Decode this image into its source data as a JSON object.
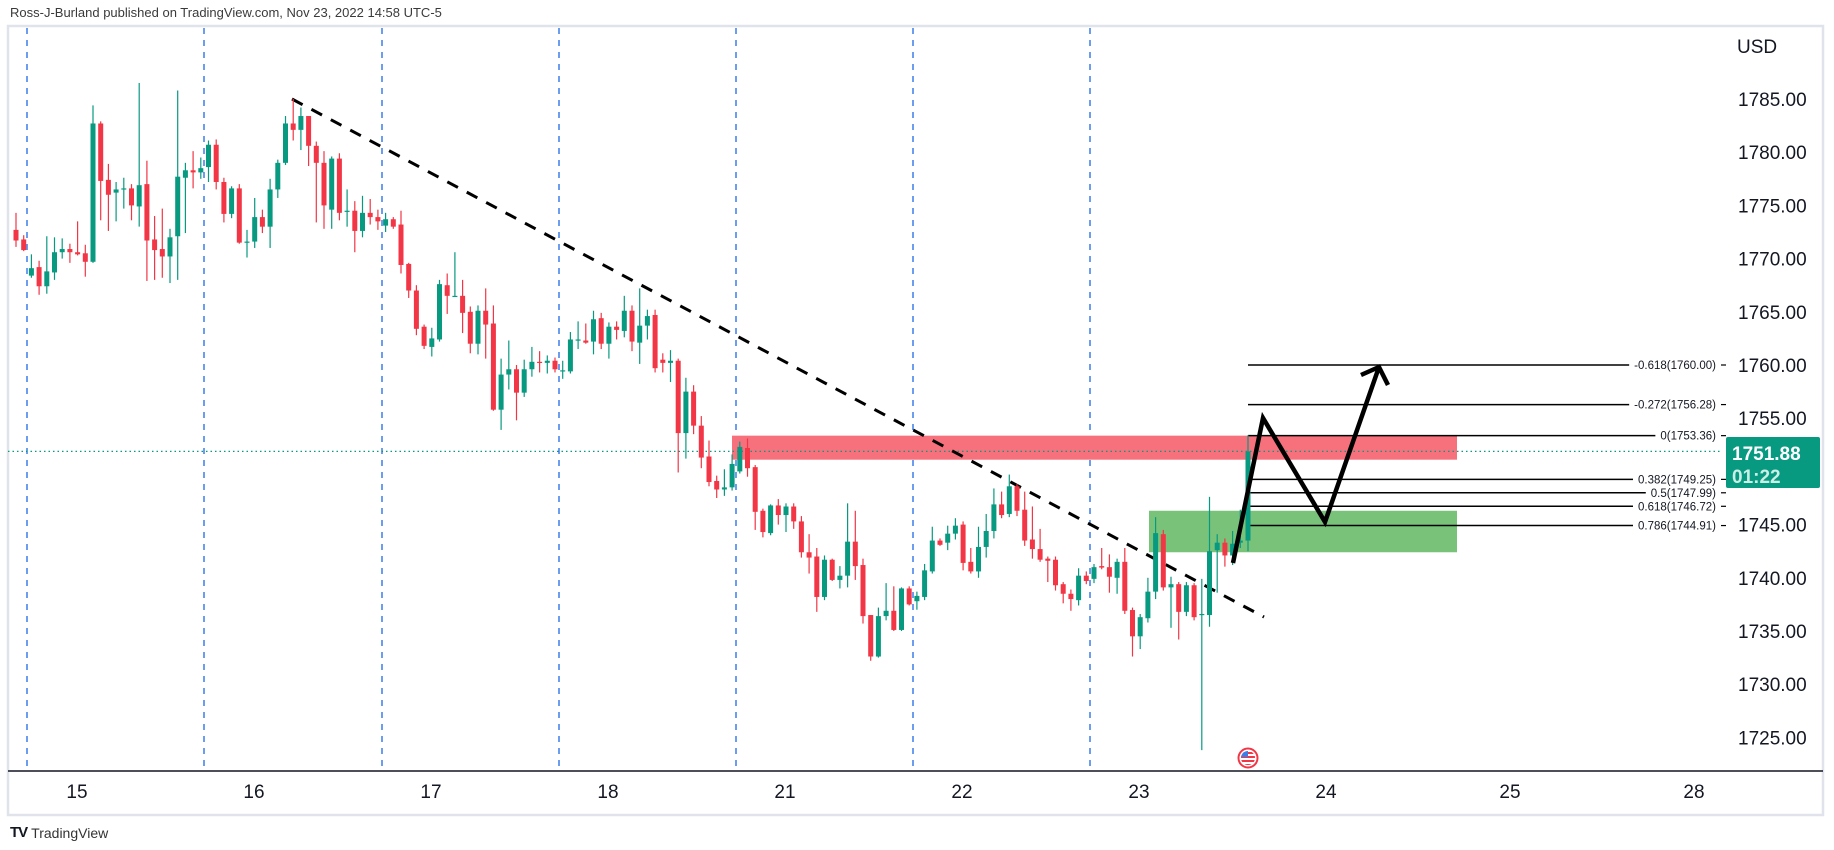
{
  "header": {
    "attribution": "Ross-J-Burland published on TradingView.com, Nov 23, 2022 14:58 UTC-5"
  },
  "footer": {
    "logo_mark": "TV",
    "logo_text": "TradingView"
  },
  "current_price": {
    "value": "1751.88",
    "countdown": "01:22"
  },
  "colors": {
    "up": "#089981",
    "down": "#f23645",
    "resistance_zone": "#f7717d",
    "support_zone": "#78c27a",
    "session_separator": "#3d7de8",
    "trendline": "#000000",
    "projection": "#000000",
    "price_badge": "#089981"
  },
  "icons": {
    "event": "us-flag-economic-event-icon"
  },
  "chart_data": {
    "type": "candlestick",
    "title": "",
    "currency": "USD",
    "ylim": [
      1722,
      1792
    ],
    "grid": false,
    "price_ticks": [
      "1785.00",
      "1780.00",
      "1775.00",
      "1770.00",
      "1765.00",
      "1760.00",
      "1755.00",
      "1745.00",
      "1740.00",
      "1735.00",
      "1730.00",
      "1725.00"
    ],
    "time_ticks": [
      "15",
      "16",
      "17",
      "18",
      "21",
      "22",
      "23",
      "24",
      "25",
      "28"
    ],
    "ohlc": [
      [
        1772.7,
        1774.3,
        1771.1,
        1771.7
      ],
      [
        1771.8,
        1772.2,
        1770.7,
        1770.8
      ],
      [
        1768.4,
        1770.4,
        1768.2,
        1769.1
      ],
      [
        1769.2,
        1769.8,
        1766.6,
        1767.4
      ],
      [
        1767.4,
        1772.1,
        1766.7,
        1768.8
      ],
      [
        1768.7,
        1772.0,
        1768.0,
        1770.6
      ],
      [
        1770.6,
        1771.9,
        1770.0,
        1770.9
      ],
      [
        1770.9,
        1771.4,
        1769.6,
        1770.6
      ],
      [
        1770.6,
        1773.5,
        1770.3,
        1770.4
      ],
      [
        1770.5,
        1771.3,
        1768.3,
        1769.7
      ],
      [
        1769.7,
        1784.4,
        1769.6,
        1782.7
      ],
      [
        1782.7,
        1782.9,
        1773.6,
        1777.3
      ],
      [
        1777.4,
        1778.9,
        1772.6,
        1776.0
      ],
      [
        1776.2,
        1777.2,
        1773.5,
        1776.5
      ],
      [
        1776.5,
        1777.6,
        1774.7,
        1776.6
      ],
      [
        1776.6,
        1777.0,
        1773.6,
        1775.0
      ],
      [
        1774.9,
        1786.5,
        1773.0,
        1776.9
      ],
      [
        1777.0,
        1779.2,
        1767.9,
        1771.7
      ],
      [
        1771.8,
        1774.0,
        1768.0,
        1770.8
      ],
      [
        1770.9,
        1774.7,
        1768.2,
        1770.2
      ],
      [
        1770.2,
        1772.8,
        1767.7,
        1772.0
      ],
      [
        1772.1,
        1785.8,
        1768.0,
        1777.7
      ],
      [
        1777.6,
        1779.0,
        1772.4,
        1778.3
      ],
      [
        1778.3,
        1780.1,
        1776.6,
        1778.1
      ],
      [
        1778.1,
        1779.5,
        1777.5,
        1778.5
      ],
      [
        1778.6,
        1781.1,
        1777.2,
        1780.7
      ],
      [
        1780.7,
        1781.2,
        1776.5,
        1777.2
      ],
      [
        1777.2,
        1777.6,
        1773.4,
        1774.2
      ],
      [
        1774.2,
        1776.8,
        1773.8,
        1776.6
      ],
      [
        1776.6,
        1777.0,
        1771.4,
        1771.5
      ],
      [
        1771.5,
        1772.7,
        1770.1,
        1771.6
      ],
      [
        1771.6,
        1775.7,
        1771.0,
        1773.9
      ],
      [
        1773.9,
        1774.6,
        1772.4,
        1773.0
      ],
      [
        1773.0,
        1777.5,
        1771.0,
        1776.5
      ],
      [
        1776.5,
        1779.3,
        1775.7,
        1779.0
      ],
      [
        1779.0,
        1783.4,
        1778.8,
        1782.7
      ],
      [
        1782.7,
        1785.0,
        1781.1,
        1782.1
      ],
      [
        1782.1,
        1784.2,
        1780.2,
        1783.4
      ],
      [
        1783.4,
        1783.4,
        1778.7,
        1780.6
      ],
      [
        1780.6,
        1781.0,
        1773.4,
        1779.0
      ],
      [
        1779.0,
        1780.1,
        1772.8,
        1775.0
      ],
      [
        1774.6,
        1779.6,
        1772.8,
        1779.4
      ],
      [
        1779.4,
        1779.9,
        1773.6,
        1774.3
      ],
      [
        1774.4,
        1776.5,
        1773.0,
        1774.5
      ],
      [
        1774.5,
        1775.4,
        1770.6,
        1772.6
      ],
      [
        1772.6,
        1775.9,
        1772.0,
        1774.3
      ],
      [
        1774.3,
        1775.6,
        1773.2,
        1773.9
      ],
      [
        1773.9,
        1774.6,
        1772.7,
        1773.5
      ],
      [
        1773.1,
        1774.3,
        1772.5,
        1773.7
      ],
      [
        1773.7,
        1773.9,
        1772.8,
        1773.0
      ],
      [
        1773.2,
        1774.5,
        1768.6,
        1769.4
      ],
      [
        1769.5,
        1769.6,
        1766.3,
        1767.0
      ],
      [
        1767.0,
        1767.5,
        1762.8,
        1763.4
      ],
      [
        1763.6,
        1763.8,
        1761.5,
        1761.8
      ],
      [
        1761.7,
        1763.5,
        1760.8,
        1762.5
      ],
      [
        1762.4,
        1768.0,
        1762.2,
        1767.6
      ],
      [
        1767.5,
        1768.6,
        1764.8,
        1766.5
      ],
      [
        1766.5,
        1770.6,
        1766.4,
        1766.5
      ],
      [
        1766.5,
        1768.0,
        1763.0,
        1764.9
      ],
      [
        1765.0,
        1765.5,
        1761.1,
        1762.0
      ],
      [
        1762.0,
        1765.6,
        1761.0,
        1765.1
      ],
      [
        1765.1,
        1767.2,
        1760.6,
        1763.8
      ],
      [
        1763.9,
        1765.6,
        1755.7,
        1755.8
      ],
      [
        1755.8,
        1760.6,
        1753.9,
        1759.1
      ],
      [
        1759.1,
        1762.3,
        1757.7,
        1759.6
      ],
      [
        1759.6,
        1760.0,
        1754.8,
        1757.4
      ],
      [
        1757.4,
        1760.5,
        1757.0,
        1759.6
      ],
      [
        1759.6,
        1761.7,
        1758.9,
        1760.3
      ],
      [
        1760.3,
        1761.3,
        1759.3,
        1760.2
      ],
      [
        1760.2,
        1760.9,
        1759.2,
        1760.4
      ],
      [
        1760.4,
        1760.7,
        1759.3,
        1759.6
      ],
      [
        1759.4,
        1760.4,
        1758.7,
        1759.5
      ],
      [
        1759.4,
        1763.1,
        1759.2,
        1762.4
      ],
      [
        1762.4,
        1764.1,
        1761.5,
        1762.4
      ],
      [
        1762.3,
        1763.9,
        1762.0,
        1762.1
      ],
      [
        1762.2,
        1765.1,
        1761.0,
        1764.3
      ],
      [
        1764.4,
        1764.9,
        1761.5,
        1762.0
      ],
      [
        1762.0,
        1764.0,
        1760.6,
        1763.6
      ],
      [
        1763.6,
        1764.1,
        1762.4,
        1763.3
      ],
      [
        1763.2,
        1766.5,
        1762.6,
        1765.1
      ],
      [
        1765.1,
        1765.6,
        1761.3,
        1762.2
      ],
      [
        1762.1,
        1767.2,
        1760.1,
        1763.7
      ],
      [
        1763.7,
        1765.2,
        1762.4,
        1764.6
      ],
      [
        1764.7,
        1765.2,
        1759.3,
        1759.7
      ],
      [
        1760.5,
        1761.1,
        1759.3,
        1760.2
      ],
      [
        1760.2,
        1761.4,
        1758.4,
        1760.4
      ],
      [
        1760.4,
        1760.6,
        1749.9,
        1753.6
      ],
      [
        1753.6,
        1758.8,
        1751.2,
        1757.5
      ],
      [
        1757.5,
        1758.1,
        1753.5,
        1754.3
      ],
      [
        1754.3,
        1755.2,
        1750.3,
        1751.3
      ],
      [
        1751.4,
        1752.9,
        1748.6,
        1749.0
      ],
      [
        1749.1,
        1749.6,
        1747.5,
        1748.3
      ],
      [
        1748.3,
        1750.2,
        1747.7,
        1748.5
      ],
      [
        1748.5,
        1751.6,
        1748.2,
        1750.7
      ],
      [
        1750.0,
        1752.8,
        1749.8,
        1752.3
      ],
      [
        1752.2,
        1753.1,
        1749.5,
        1750.3
      ],
      [
        1750.4,
        1750.6,
        1744.5,
        1746.2
      ],
      [
        1746.3,
        1746.5,
        1743.8,
        1744.3
      ],
      [
        1744.2,
        1746.9,
        1744.0,
        1746.8
      ],
      [
        1746.8,
        1747.4,
        1745.0,
        1745.9
      ],
      [
        1745.9,
        1747.0,
        1744.3,
        1746.7
      ],
      [
        1746.7,
        1747.0,
        1744.6,
        1745.3
      ],
      [
        1745.3,
        1745.8,
        1741.9,
        1742.4
      ],
      [
        1742.4,
        1744.1,
        1740.4,
        1741.9
      ],
      [
        1742.0,
        1742.8,
        1736.8,
        1738.2
      ],
      [
        1738.2,
        1742.1,
        1737.9,
        1741.7
      ],
      [
        1741.7,
        1741.8,
        1739.7,
        1739.8
      ],
      [
        1739.8,
        1741.1,
        1739.0,
        1740.2
      ],
      [
        1740.2,
        1747.0,
        1739.1,
        1743.4
      ],
      [
        1743.4,
        1746.3,
        1739.8,
        1741.1
      ],
      [
        1741.2,
        1741.8,
        1735.7,
        1736.4
      ],
      [
        1736.5,
        1736.5,
        1732.2,
        1732.6
      ],
      [
        1732.6,
        1737.2,
        1732.5,
        1736.4
      ],
      [
        1736.4,
        1739.5,
        1736.0,
        1736.9
      ],
      [
        1736.9,
        1739.2,
        1735.0,
        1735.1
      ],
      [
        1735.1,
        1739.1,
        1735.0,
        1739.0
      ],
      [
        1739.0,
        1739.2,
        1737.4,
        1737.5
      ],
      [
        1737.8,
        1738.7,
        1737.0,
        1738.3
      ],
      [
        1738.2,
        1741.3,
        1737.9,
        1740.7
      ],
      [
        1740.6,
        1744.8,
        1740.4,
        1743.5
      ],
      [
        1743.5,
        1743.7,
        1743.0,
        1743.1
      ],
      [
        1743.3,
        1744.9,
        1742.6,
        1744.15
      ],
      [
        1744.15,
        1745.6,
        1743.6,
        1744.9
      ],
      [
        1745.0,
        1745.3,
        1740.7,
        1741.4
      ],
      [
        1741.5,
        1742.8,
        1740.4,
        1740.6
      ],
      [
        1740.6,
        1744.8,
        1740.0,
        1742.9
      ],
      [
        1742.9,
        1746.0,
        1741.9,
        1744.4
      ],
      [
        1744.4,
        1748.4,
        1743.7,
        1746.9
      ],
      [
        1746.9,
        1748.1,
        1745.6,
        1745.9
      ],
      [
        1746.0,
        1749.7,
        1745.7,
        1748.6
      ],
      [
        1748.6,
        1748.8,
        1745.8,
        1746.3
      ],
      [
        1746.4,
        1748.1,
        1743.0,
        1743.5
      ],
      [
        1743.6,
        1746.7,
        1741.8,
        1742.7
      ],
      [
        1742.7,
        1744.6,
        1741.5,
        1741.7
      ],
      [
        1741.8,
        1742.0,
        1739.6,
        1741.6
      ],
      [
        1741.7,
        1742.0,
        1738.8,
        1739.3
      ],
      [
        1739.4,
        1739.6,
        1737.6,
        1738.5
      ],
      [
        1738.5,
        1738.9,
        1736.9,
        1738.0
      ],
      [
        1737.9,
        1740.9,
        1737.4,
        1740.2
      ],
      [
        1740.2,
        1740.6,
        1739.4,
        1739.7
      ],
      [
        1739.9,
        1741.3,
        1739.5,
        1741.0
      ],
      [
        1741.1,
        1742.8,
        1740.8,
        1740.96
      ],
      [
        1741.0,
        1742.2,
        1738.6,
        1740.1
      ],
      [
        1740.0,
        1741.8,
        1738.5,
        1741.5
      ],
      [
        1741.5,
        1742.8,
        1736.6,
        1736.9
      ],
      [
        1736.97,
        1737.2,
        1732.6,
        1734.5
      ],
      [
        1734.5,
        1736.6,
        1733.3,
        1736.3
      ],
      [
        1736.2,
        1740.0,
        1735.8,
        1738.7
      ],
      [
        1738.7,
        1745.7,
        1738.0,
        1744.2
      ],
      [
        1744.1,
        1744.5,
        1738.8,
        1739.1
      ],
      [
        1739.1,
        1740.1,
        1735.3,
        1739.4
      ],
      [
        1739.4,
        1739.6,
        1734.2,
        1736.8
      ],
      [
        1736.8,
        1739.6,
        1736.4,
        1739.3
      ],
      [
        1739.3,
        1739.5,
        1736.0,
        1736.3
      ],
      [
        1736.5,
        1739.9,
        1723.8,
        1736.6
      ],
      [
        1736.5,
        1747.6,
        1735.4,
        1742.5
      ],
      [
        1742.6,
        1744.1,
        1738.6,
        1743.3
      ],
      [
        1743.3,
        1743.7,
        1741.05,
        1742.1
      ],
      [
        1742.1,
        1744.4,
        1741.2,
        1743.2
      ],
      [
        1743.3,
        1746.4,
        1742.8,
        1743.5
      ],
      [
        1743.5,
        1753.4,
        1742.5,
        1751.88
      ]
    ],
    "zones": [
      {
        "kind": "resistance",
        "from": 1751.1,
        "to": 1753.36
      },
      {
        "kind": "support",
        "from": 1742.4,
        "to": 1746.3
      }
    ],
    "fib_levels": [
      {
        "ratio": -0.618,
        "price": 1760.0,
        "label": "-0.618(1760.00)"
      },
      {
        "ratio": -0.272,
        "price": 1756.28,
        "label": "-0.272(1756.28)"
      },
      {
        "ratio": 0,
        "price": 1753.36,
        "label": "0(1753.36)"
      },
      {
        "ratio": 0.382,
        "price": 1749.25,
        "label": "0.382(1749.25)"
      },
      {
        "ratio": 0.5,
        "price": 1747.99,
        "label": "0.5(1747.99)"
      },
      {
        "ratio": 0.618,
        "price": 1746.72,
        "label": "0.618(1746.72)"
      },
      {
        "ratio": 0.786,
        "price": 1744.91,
        "label": "0.786(1744.91)"
      }
    ]
  }
}
